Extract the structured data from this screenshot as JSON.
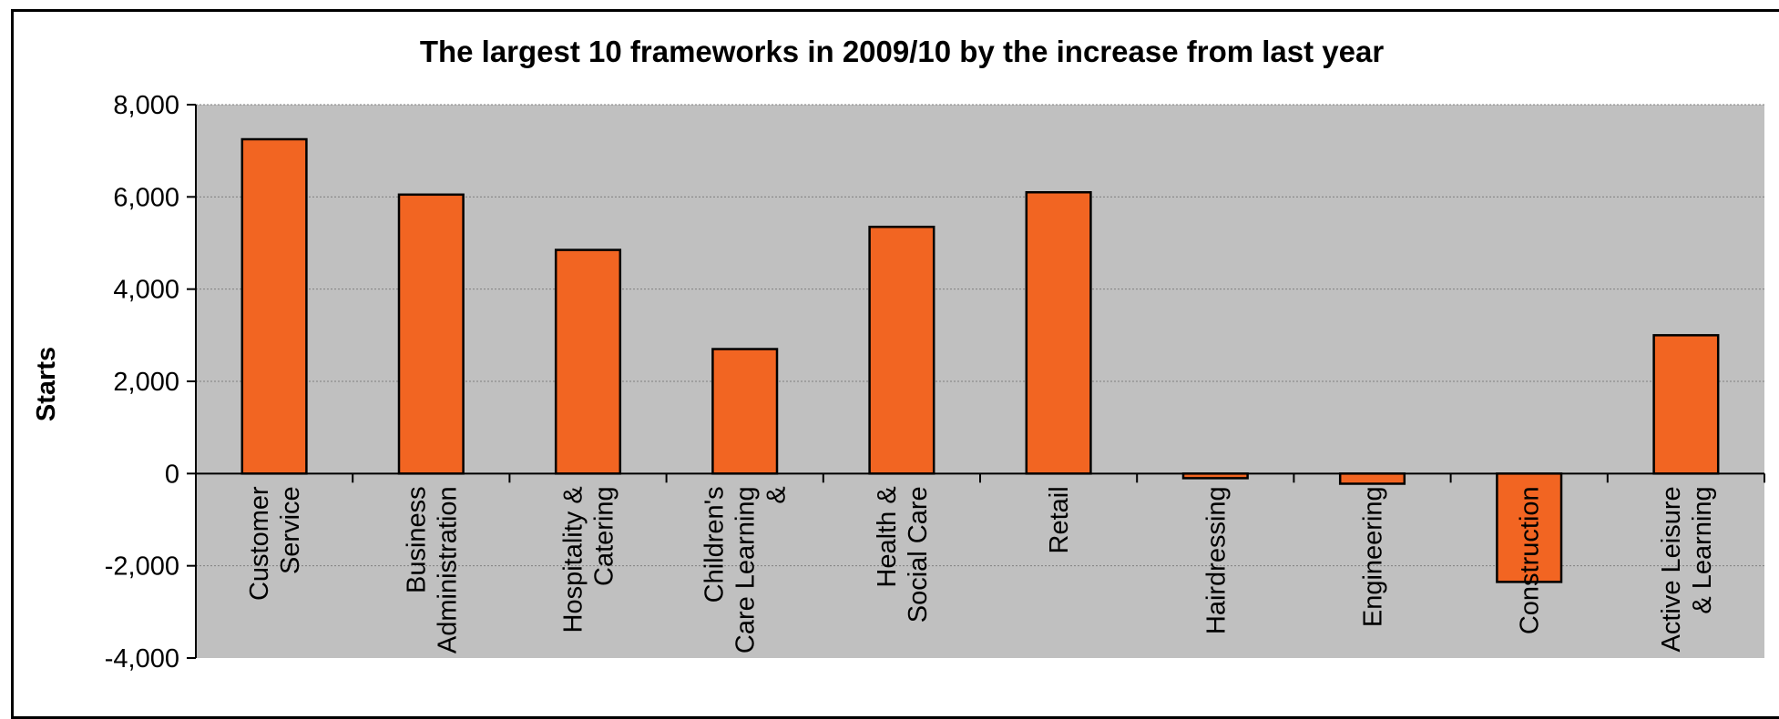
{
  "chart_data": {
    "type": "bar",
    "title": "The largest 10 frameworks in 2009/10 by the increase from last year",
    "xlabel": "",
    "ylabel": "Starts",
    "ylim": [
      -4000,
      8000
    ],
    "yticks": [
      8000,
      6000,
      4000,
      2000,
      0,
      -2000,
      -4000
    ],
    "ytick_labels": [
      "8,000",
      "6,000",
      "4,000",
      "2,000",
      "0",
      "-2,000",
      "-4,000"
    ],
    "grid": true,
    "categories": [
      "Customer Service",
      "Business Administration",
      "Hospitality & Catering",
      "Children's Care Learning &",
      "Health & Social Care",
      "Retail",
      "Hairdressing",
      "Engineering",
      "Construction",
      "Active Leisure & Learning"
    ],
    "category_label_lines": [
      [
        "Customer",
        "Service"
      ],
      [
        "Business",
        "Administration"
      ],
      [
        "Hospitality &",
        "Catering"
      ],
      [
        "Children's",
        "Care Learning",
        "&"
      ],
      [
        "Health &",
        "Social Care"
      ],
      [
        "Retail"
      ],
      [
        "Hairdressing"
      ],
      [
        "Engineering"
      ],
      [
        "Construction"
      ],
      [
        "Active Leisure",
        "& Learning"
      ]
    ],
    "values": [
      7250,
      6050,
      4850,
      2700,
      5350,
      6100,
      -100,
      -220,
      -2350,
      3000
    ],
    "colors": {
      "bar": "#f26522",
      "plot_bg": "#c0c0c0",
      "grid": "#808080",
      "axis": "#000000"
    }
  }
}
